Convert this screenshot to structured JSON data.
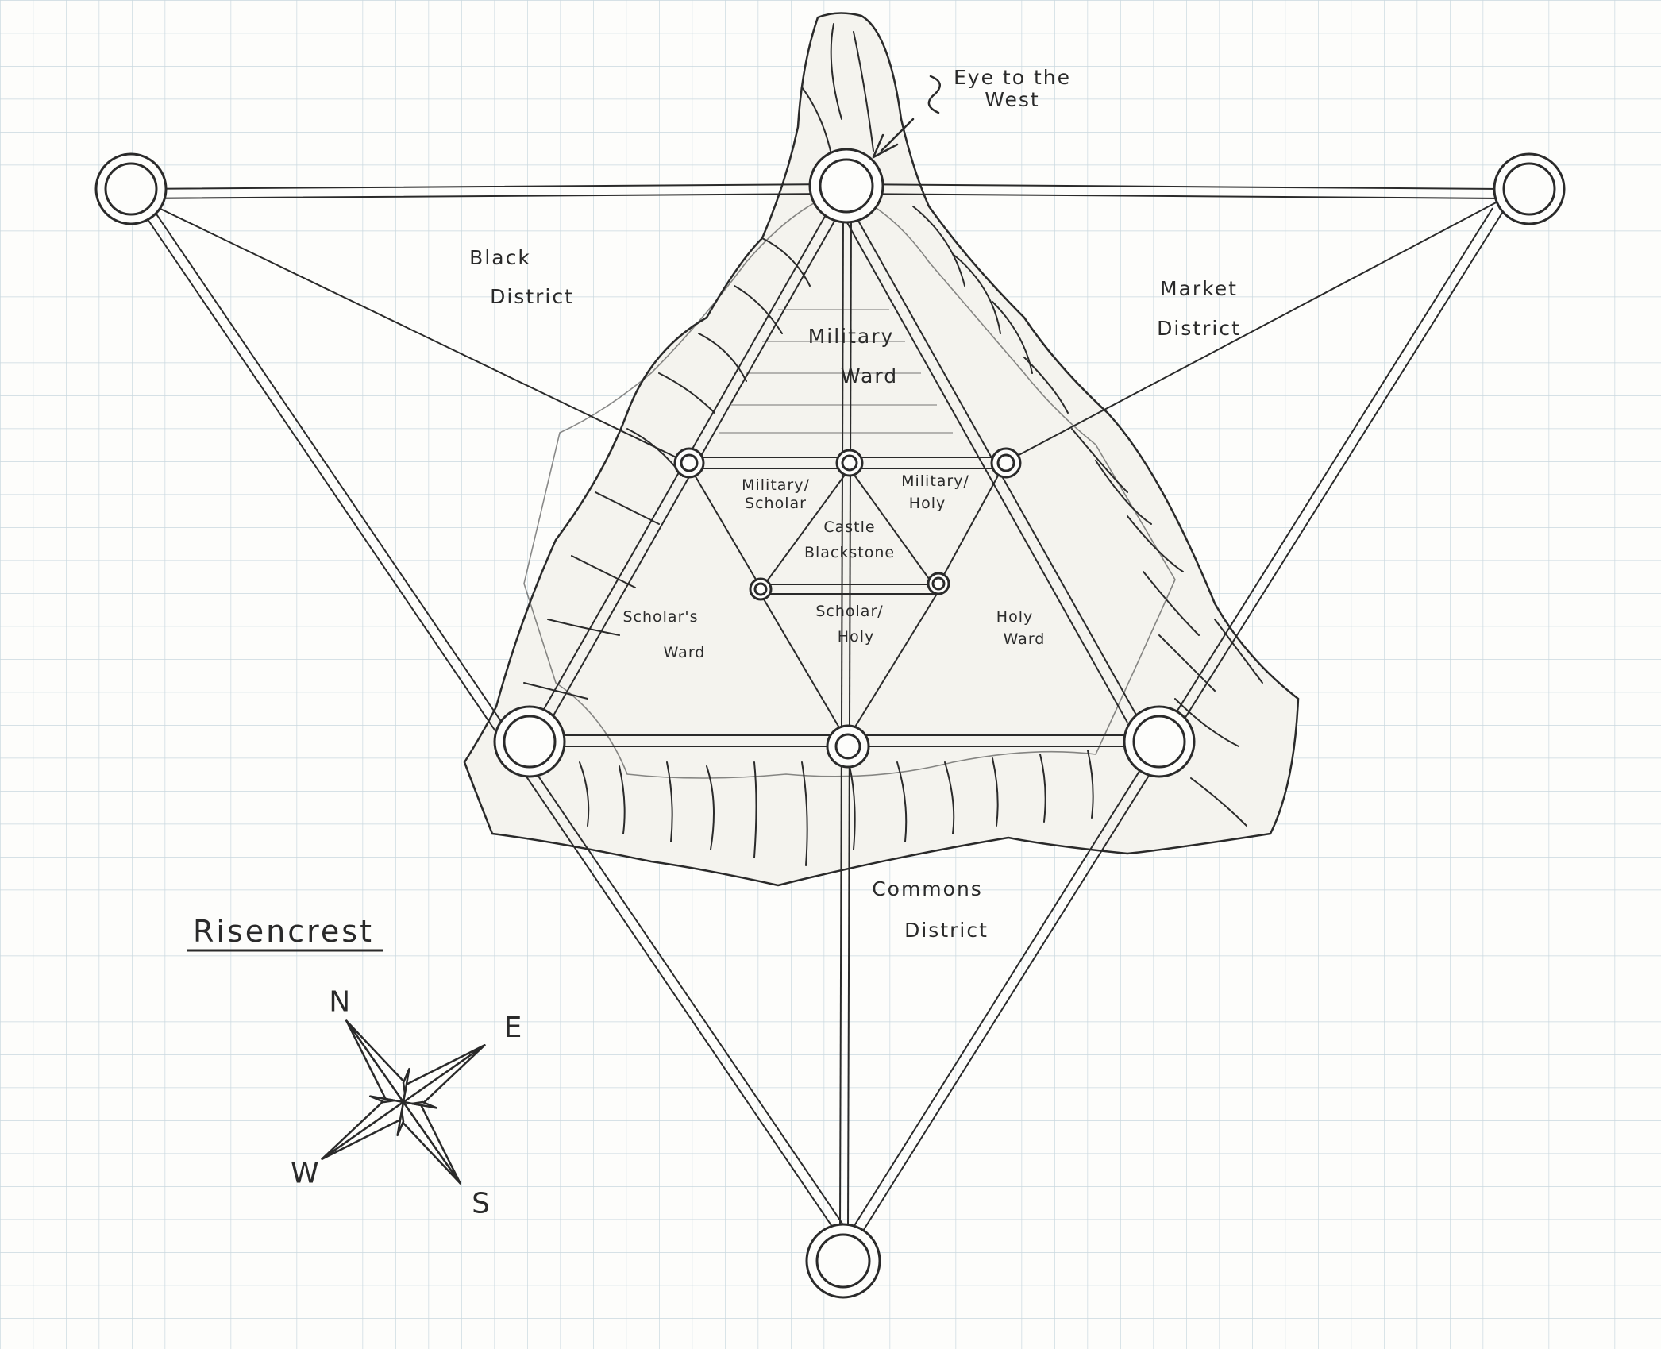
{
  "map": {
    "title": "Risencrest",
    "annotation": {
      "line1": "Eye to the",
      "line2": "West"
    },
    "districts": [
      {
        "id": "black",
        "line1": "Black",
        "line2": "District"
      },
      {
        "id": "market",
        "line1": "Market",
        "line2": "District"
      },
      {
        "id": "commons",
        "line1": "Commons",
        "line2": "District"
      }
    ],
    "wards": [
      {
        "id": "military",
        "line1": "Military",
        "line2": "Ward"
      },
      {
        "id": "military-scholar",
        "line1": "Military/",
        "line2": "Scholar"
      },
      {
        "id": "military-holy",
        "line1": "Military/",
        "line2": "Holy"
      },
      {
        "id": "castle",
        "line1": "Castle",
        "line2": "Blackstone"
      },
      {
        "id": "scholars",
        "line1": "Scholar's",
        "line2": "Ward"
      },
      {
        "id": "scholar-holy",
        "line1": "Scholar/",
        "line2": "Holy"
      },
      {
        "id": "holy",
        "line1": "Holy",
        "line2": "Ward"
      }
    ],
    "compass": {
      "n": "N",
      "s": "S",
      "e": "E",
      "w": "W"
    },
    "colors": {
      "ink": "#2a2a2a",
      "paper": "#fdfdfb",
      "grid": "#c9d8df",
      "cliff": "#f4f3ee"
    }
  }
}
